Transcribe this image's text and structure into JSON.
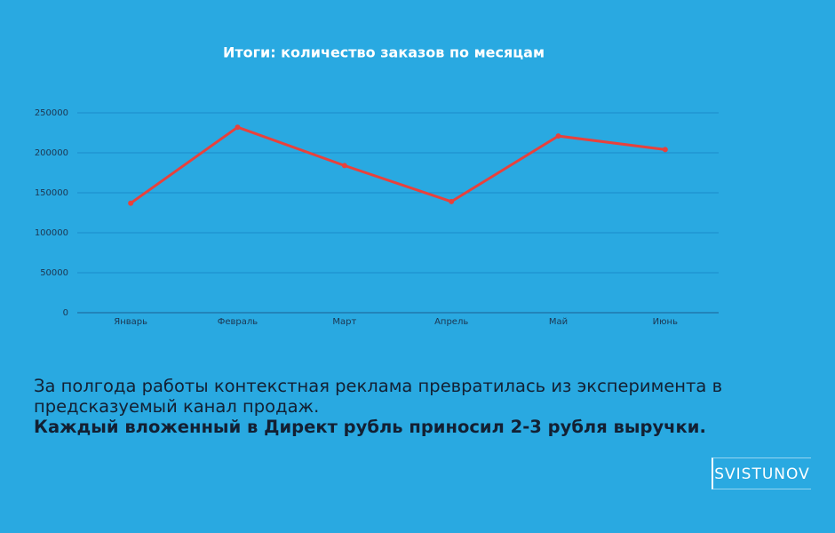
{
  "chart_data": {
    "type": "line",
    "title": "Итоги: количество заказов по месяцам",
    "categories": [
      "Январь",
      "Февраль",
      "Март",
      "Апрель",
      "Май",
      "Июнь"
    ],
    "values": [
      137000,
      232000,
      184000,
      139000,
      221000,
      204000
    ],
    "color": "#e8413c",
    "ylim": [
      0,
      250000
    ],
    "yticks": [
      0,
      50000,
      100000,
      150000,
      200000,
      250000
    ],
    "grid": true
  },
  "text": {
    "paragraph": "За полгода работы контекстная реклама превратилась из эксперимента в предсказуемый канал продаж.",
    "emphasis": "Каждый вложенный в Директ рубль приносил 2-3 рубля выручки."
  },
  "logo": "SVISTUNOV"
}
